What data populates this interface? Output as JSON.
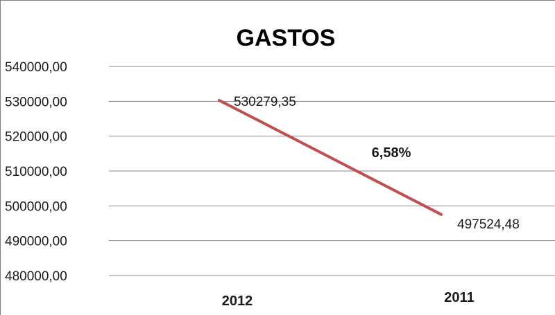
{
  "chart_data": {
    "type": "line",
    "title": "GASTOS",
    "xlabel": "",
    "ylabel": "",
    "categories": [
      "2012",
      "2011"
    ],
    "series": [
      {
        "values": [
          530279.35,
          497524.48
        ],
        "labels": [
          "530279,35",
          "497524,48"
        ]
      }
    ],
    "ylim": [
      480000,
      540000
    ],
    "yticks": [
      540000,
      530000,
      520000,
      510000,
      500000,
      490000,
      480000
    ],
    "ytick_labels": [
      "540000,00",
      "530000,00",
      "520000,00",
      "510000,00",
      "500000,00",
      "490000,00",
      "480000,00"
    ],
    "grid": true,
    "annotation": "6,58%",
    "colors": {
      "line": "#c0504d",
      "grid": "#878787"
    }
  }
}
